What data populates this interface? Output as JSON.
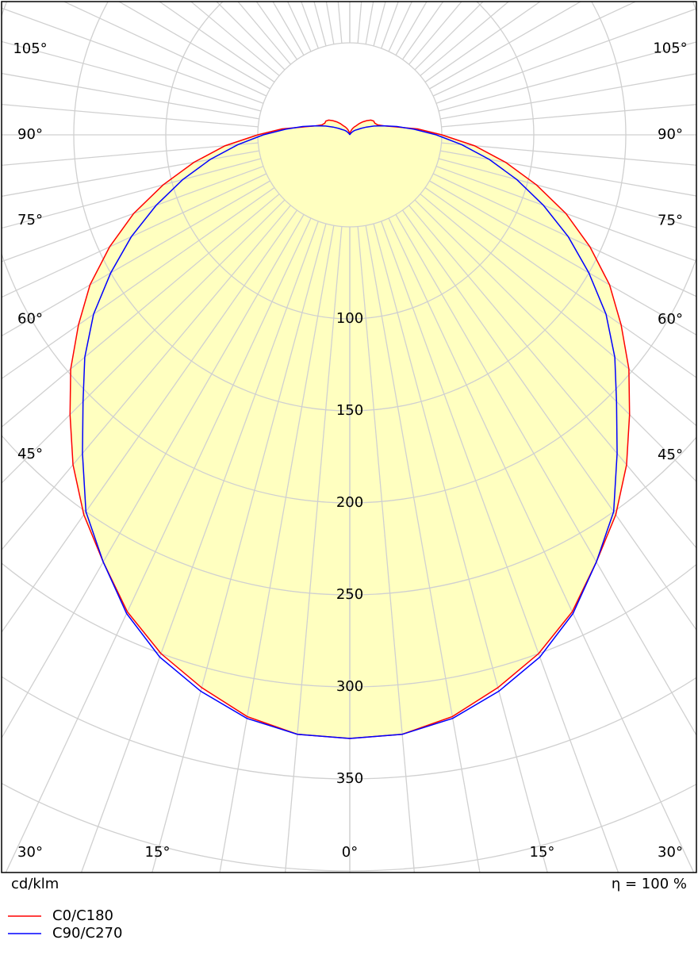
{
  "chart_data": {
    "type": "polar",
    "radial_unit": "cd/klm",
    "efficiency": "η = 100 %",
    "gamma": [
      0,
      5,
      10,
      15,
      20,
      25,
      30,
      35,
      40,
      45,
      50,
      55,
      60,
      65,
      70,
      75,
      80,
      85,
      90,
      95,
      100,
      105,
      110,
      115,
      120,
      125,
      130,
      135,
      140,
      145,
      150,
      155,
      160,
      165,
      170,
      175,
      180
    ],
    "series": [
      {
        "name": "C0/C180",
        "color": "#ff0000",
        "values": [
          328,
          327,
          321,
          311,
          300,
          286,
          268,
          252,
          234,
          215,
          198,
          180,
          163,
          144,
          125,
          105,
          86,
          68,
          50,
          37,
          25,
          19,
          16,
          15,
          15,
          14,
          12,
          10,
          8,
          6,
          5,
          4,
          3,
          2,
          1,
          1,
          0
        ]
      },
      {
        "name": "C90/C270",
        "color": "#0000ff",
        "values": [
          328,
          327,
          322,
          313,
          302,
          287,
          268,
          250,
          226,
          205,
          188,
          170,
          150,
          131,
          112,
          94,
          77,
          61,
          47,
          35,
          26,
          19,
          14,
          10,
          7,
          5,
          4,
          3,
          2,
          1,
          1,
          0,
          0,
          0,
          0,
          0,
          0
        ]
      }
    ],
    "fill": "#ffffc0",
    "rlim": [
      0,
      450
    ],
    "rgrid": [
      50,
      100,
      150,
      200,
      250,
      300,
      350,
      400,
      450
    ],
    "rticks": [
      100,
      150,
      200,
      250,
      300,
      350
    ],
    "angle_ticks": [
      {
        "value": 0,
        "label": "0°"
      },
      {
        "value": 15,
        "label": "15°"
      },
      {
        "value": 30,
        "label": "30°"
      },
      {
        "value": 45,
        "label": "45°"
      },
      {
        "value": 60,
        "label": "60°"
      },
      {
        "value": 75,
        "label": "75°"
      },
      {
        "value": 90,
        "label": "90°"
      },
      {
        "value": 105,
        "label": "105°"
      }
    ]
  }
}
